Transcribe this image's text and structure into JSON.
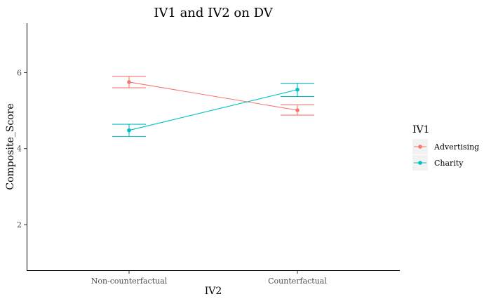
{
  "chart_data": {
    "type": "line",
    "title": "IV1 and IV2 on DV",
    "xlabel": "IV2",
    "ylabel": "Composite_Score",
    "categories": [
      "Non-counterfactual",
      "Counterfactual"
    ],
    "ylim": [
      0.8,
      7.3
    ],
    "yticks": [
      2,
      4,
      6
    ],
    "grid": false,
    "legend": {
      "title": "IV1",
      "placement": "right"
    },
    "series": [
      {
        "name": "Advertising",
        "color": "#F8766D",
        "values": [
          5.75,
          5.01
        ],
        "error_low": [
          5.6,
          4.88
        ],
        "error_high": [
          5.9,
          5.15
        ]
      },
      {
        "name": "Charity",
        "color": "#00BFC4",
        "values": [
          4.48,
          5.55
        ],
        "error_low": [
          4.32,
          5.37
        ],
        "error_high": [
          4.64,
          5.72
        ]
      }
    ]
  }
}
